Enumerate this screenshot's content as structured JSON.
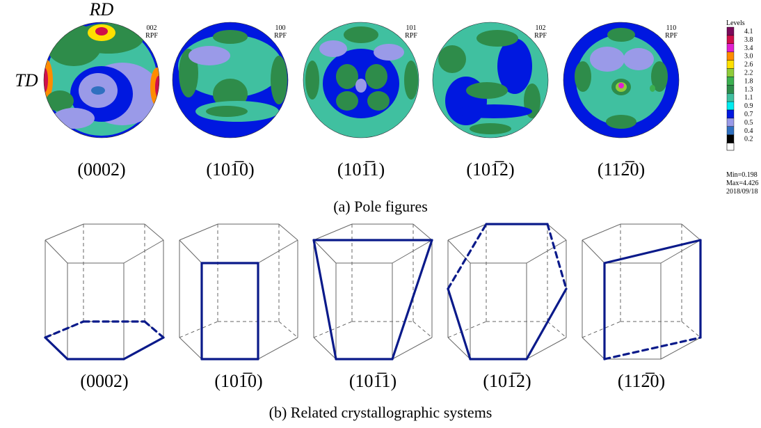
{
  "pole_figures": {
    "axis_labels": {
      "rd": "RD",
      "td": "TD"
    },
    "figures": [
      {
        "code": "002",
        "kind": "RPF",
        "miller": "(0002)"
      },
      {
        "code": "100",
        "kind": "RPF",
        "miller": "(101̅0)"
      },
      {
        "code": "101",
        "kind": "RPF",
        "miller": "(101̅1)"
      },
      {
        "code": "102",
        "kind": "RPF",
        "miller": "(101̅2)"
      },
      {
        "code": "110",
        "kind": "RPF",
        "miller": "(112̅0)"
      }
    ],
    "legend": {
      "title": "Levels",
      "levels": [
        {
          "value": "4.1",
          "color": "#7a0a5a"
        },
        {
          "value": "3.8",
          "color": "#d0104a"
        },
        {
          "value": "3.4",
          "color": "#e020d0"
        },
        {
          "value": "3.0",
          "color": "#ff8c00"
        },
        {
          "value": "2.6",
          "color": "#ffe000"
        },
        {
          "value": "2.2",
          "color": "#8fcc3a"
        },
        {
          "value": "1.8",
          "color": "#3cb050"
        },
        {
          "value": "1.3",
          "color": "#2e8c4a"
        },
        {
          "value": "1.1",
          "color": "#40c0a0"
        },
        {
          "value": "0.9",
          "color": "#00ecf0"
        },
        {
          "value": "0.7",
          "color": "#0018e0"
        },
        {
          "value": "0.5",
          "color": "#9a9ae8"
        },
        {
          "value": "0.4",
          "color": "#3070c0"
        },
        {
          "value": "0.2",
          "color": "#000000"
        }
      ],
      "min": "Min=0.198",
      "max": "Max=4.426",
      "date": "2018/09/18"
    },
    "caption": "(a) Pole figures"
  },
  "crystal_systems": {
    "planes": [
      {
        "miller": "(0002)"
      },
      {
        "miller": "(101̅0)"
      },
      {
        "miller": "(101̅1)"
      },
      {
        "miller": "(101̅2)"
      },
      {
        "miller": "(112̅0)"
      }
    ],
    "caption": "(b) Related crystallographic systems"
  }
}
